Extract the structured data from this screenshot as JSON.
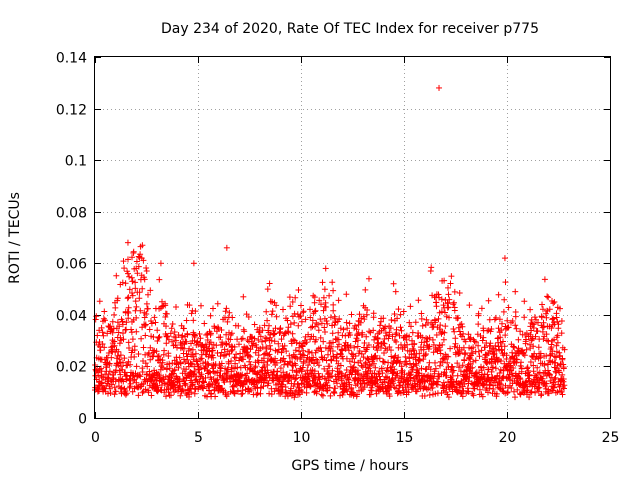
{
  "chart_data": {
    "type": "scatter",
    "title": "Day 234 of 2020, Rate Of TEC Index for receiver p775",
    "xlabel": "GPS time / hours",
    "ylabel": "ROTI / TECUs",
    "xlim": [
      0,
      25
    ],
    "ylim": [
      0,
      0.14
    ],
    "xticks": [
      0,
      5,
      10,
      15,
      20,
      25
    ],
    "xtick_labels": [
      "0",
      "5",
      "10",
      "15",
      "20",
      "25"
    ],
    "yticks": [
      0,
      0.02,
      0.04,
      0.06,
      0.08,
      0.1,
      0.12,
      0.14
    ],
    "ytick_labels": [
      "0",
      "0.02",
      "0.04",
      "0.06",
      "0.08",
      "0.1",
      "0.12",
      "0.14"
    ],
    "grid": true,
    "marker": "+",
    "color": "#ff0000",
    "series": [
      {
        "name": "ROTI",
        "x_range": [
          0,
          22.8
        ],
        "typical_range": [
          0.005,
          0.035
        ],
        "notable_points": [
          {
            "x": 16.7,
            "y": 0.128
          },
          {
            "x": 1.6,
            "y": 0.068
          },
          {
            "x": 2.3,
            "y": 0.067
          },
          {
            "x": 6.4,
            "y": 0.066
          },
          {
            "x": 19.9,
            "y": 0.062
          },
          {
            "x": 3.2,
            "y": 0.06
          },
          {
            "x": 4.8,
            "y": 0.06
          },
          {
            "x": 11.2,
            "y": 0.058
          },
          {
            "x": 16.3,
            "y": 0.057
          },
          {
            "x": 17.3,
            "y": 0.055
          },
          {
            "x": 13.3,
            "y": 0.054
          },
          {
            "x": 2.0,
            "y": 0.058
          },
          {
            "x": 14.6,
            "y": 0.049
          },
          {
            "x": 20.4,
            "y": 0.049
          },
          {
            "x": 12.2,
            "y": 0.048
          },
          {
            "x": 8.6,
            "y": 0.045
          },
          {
            "x": 7.2,
            "y": 0.047
          },
          {
            "x": 9.6,
            "y": 0.045
          },
          {
            "x": 22.3,
            "y": 0.045
          },
          {
            "x": 21.7,
            "y": 0.044
          },
          {
            "x": 10.1,
            "y": 0.041
          },
          {
            "x": 0.2,
            "y": 0.034
          }
        ]
      }
    ]
  }
}
